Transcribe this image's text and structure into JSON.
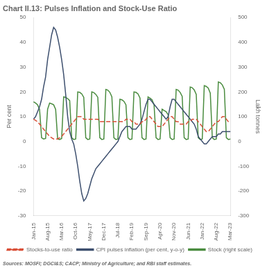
{
  "chart_data": {
    "type": "line",
    "title": "Chart II.13: Pulses Inflation and Stock-Use Ratio",
    "ylabel": "Per cent",
    "y2label": "Lakh tonnes",
    "source": "Sources: MOSFI; DGCI&S; CACP; Ministry of Agriculture; and RBI staff estimates.",
    "ylim": [
      -30,
      50
    ],
    "yticks": [
      -30,
      -20,
      -10,
      0,
      10,
      20,
      30,
      40,
      50
    ],
    "y2lim": [
      -300,
      500
    ],
    "y2ticks": [
      -300,
      -200,
      -100,
      0,
      100,
      200,
      300,
      400,
      500
    ],
    "grid": false,
    "legend": "bottom",
    "categories": [
      "Jan-15",
      null,
      null,
      null,
      null,
      null,
      null,
      "Aug-15",
      null,
      null,
      null,
      null,
      null,
      null,
      "Mar-16",
      null,
      null,
      null,
      null,
      null,
      null,
      "Oct-16",
      null,
      null,
      null,
      null,
      null,
      null,
      "May-17",
      null,
      null,
      null,
      null,
      null,
      null,
      "Dec-17",
      null,
      null,
      null,
      null,
      null,
      null,
      "Jul-18",
      null,
      null,
      null,
      null,
      null,
      null,
      "Feb-19",
      null,
      null,
      null,
      null,
      null,
      null,
      "Sep-19",
      null,
      null,
      null,
      null,
      null,
      null,
      "Apr-20",
      null,
      null,
      null,
      null,
      null,
      null,
      "Nov-20",
      null,
      null,
      null,
      null,
      null,
      null,
      "Jun-21",
      null,
      null,
      null,
      null,
      null,
      null,
      "Jan-22",
      null,
      null,
      null,
      null,
      null,
      null,
      "Aug-22",
      null,
      null,
      null,
      null,
      null,
      null,
      "Mar-23"
    ],
    "series": [
      {
        "name": "Stocks-to-use ratio",
        "color": "#d94f37",
        "line_style": "dashed",
        "values": [
          9,
          8.5,
          8,
          7,
          6,
          5,
          4,
          3,
          2,
          1.5,
          1,
          1,
          1,
          1.5,
          2,
          3,
          4,
          5,
          6,
          7,
          8,
          9,
          10,
          10,
          10,
          9,
          9,
          9,
          9,
          9,
          9,
          9,
          9,
          8,
          8,
          8,
          8,
          8,
          8,
          8,
          8,
          8,
          8,
          8,
          8,
          8,
          9,
          9,
          9,
          8,
          8,
          7,
          7,
          7,
          8,
          8,
          9,
          10,
          10,
          9,
          8,
          7,
          6,
          6,
          6,
          7,
          8,
          9,
          10,
          10,
          9,
          8,
          8,
          7,
          7,
          7,
          7,
          8,
          8,
          9,
          9,
          9,
          8,
          7,
          6,
          5,
          4,
          4,
          5,
          6,
          7,
          8,
          8,
          9,
          10,
          10,
          9,
          8,
          8
        ]
      },
      {
        "name": "CPI pulses inflation (per cent, y-o-y)",
        "color": "#3d4f6e",
        "line_style": "solid",
        "values": [
          9,
          10,
          12,
          14,
          17,
          22,
          26,
          33,
          38,
          43,
          46,
          45,
          42,
          38,
          33,
          27,
          19,
          10,
          4,
          1,
          -1,
          -5,
          -10,
          -16,
          -21,
          -24,
          -23,
          -21,
          -18,
          -15,
          -13,
          -11,
          -10,
          -9,
          -8,
          -7,
          -6,
          -5,
          -4,
          -3,
          -2,
          -1,
          0,
          2,
          4,
          5,
          6,
          6,
          6,
          5,
          5,
          5,
          6,
          7,
          9,
          12,
          15,
          17,
          17,
          16,
          15,
          14,
          13,
          12,
          11,
          10,
          9,
          10,
          14,
          17,
          17,
          16,
          15,
          14,
          13,
          12,
          11,
          10,
          9,
          8,
          7,
          5,
          2,
          1,
          0,
          -1,
          -1,
          0,
          1,
          2,
          2,
          2,
          3,
          3,
          4,
          4,
          4,
          4,
          4
        ]
      },
      {
        "name": "Stock (right scale)",
        "color": "#4a8c3f",
        "line_style": "solid",
        "axis": "y2",
        "values": [
          160,
          155,
          148,
          130,
          15,
          10,
          12,
          130,
          155,
          152,
          148,
          130,
          10,
          8,
          12,
          180,
          178,
          173,
          165,
          15,
          8,
          10,
          200,
          198,
          192,
          178,
          15,
          8,
          10,
          200,
          197,
          190,
          178,
          15,
          8,
          10,
          210,
          207,
          198,
          180,
          15,
          8,
          10,
          170,
          168,
          162,
          148,
          15,
          8,
          10,
          200,
          198,
          192,
          175,
          15,
          8,
          10,
          180,
          175,
          168,
          148,
          15,
          8,
          10,
          130,
          125,
          120,
          108,
          15,
          8,
          10,
          210,
          207,
          198,
          182,
          15,
          8,
          10,
          220,
          217,
          208,
          190,
          15,
          8,
          10,
          225,
          222,
          215,
          195,
          15,
          8,
          10,
          240,
          237,
          228,
          210,
          15,
          8,
          10
        ]
      }
    ]
  }
}
